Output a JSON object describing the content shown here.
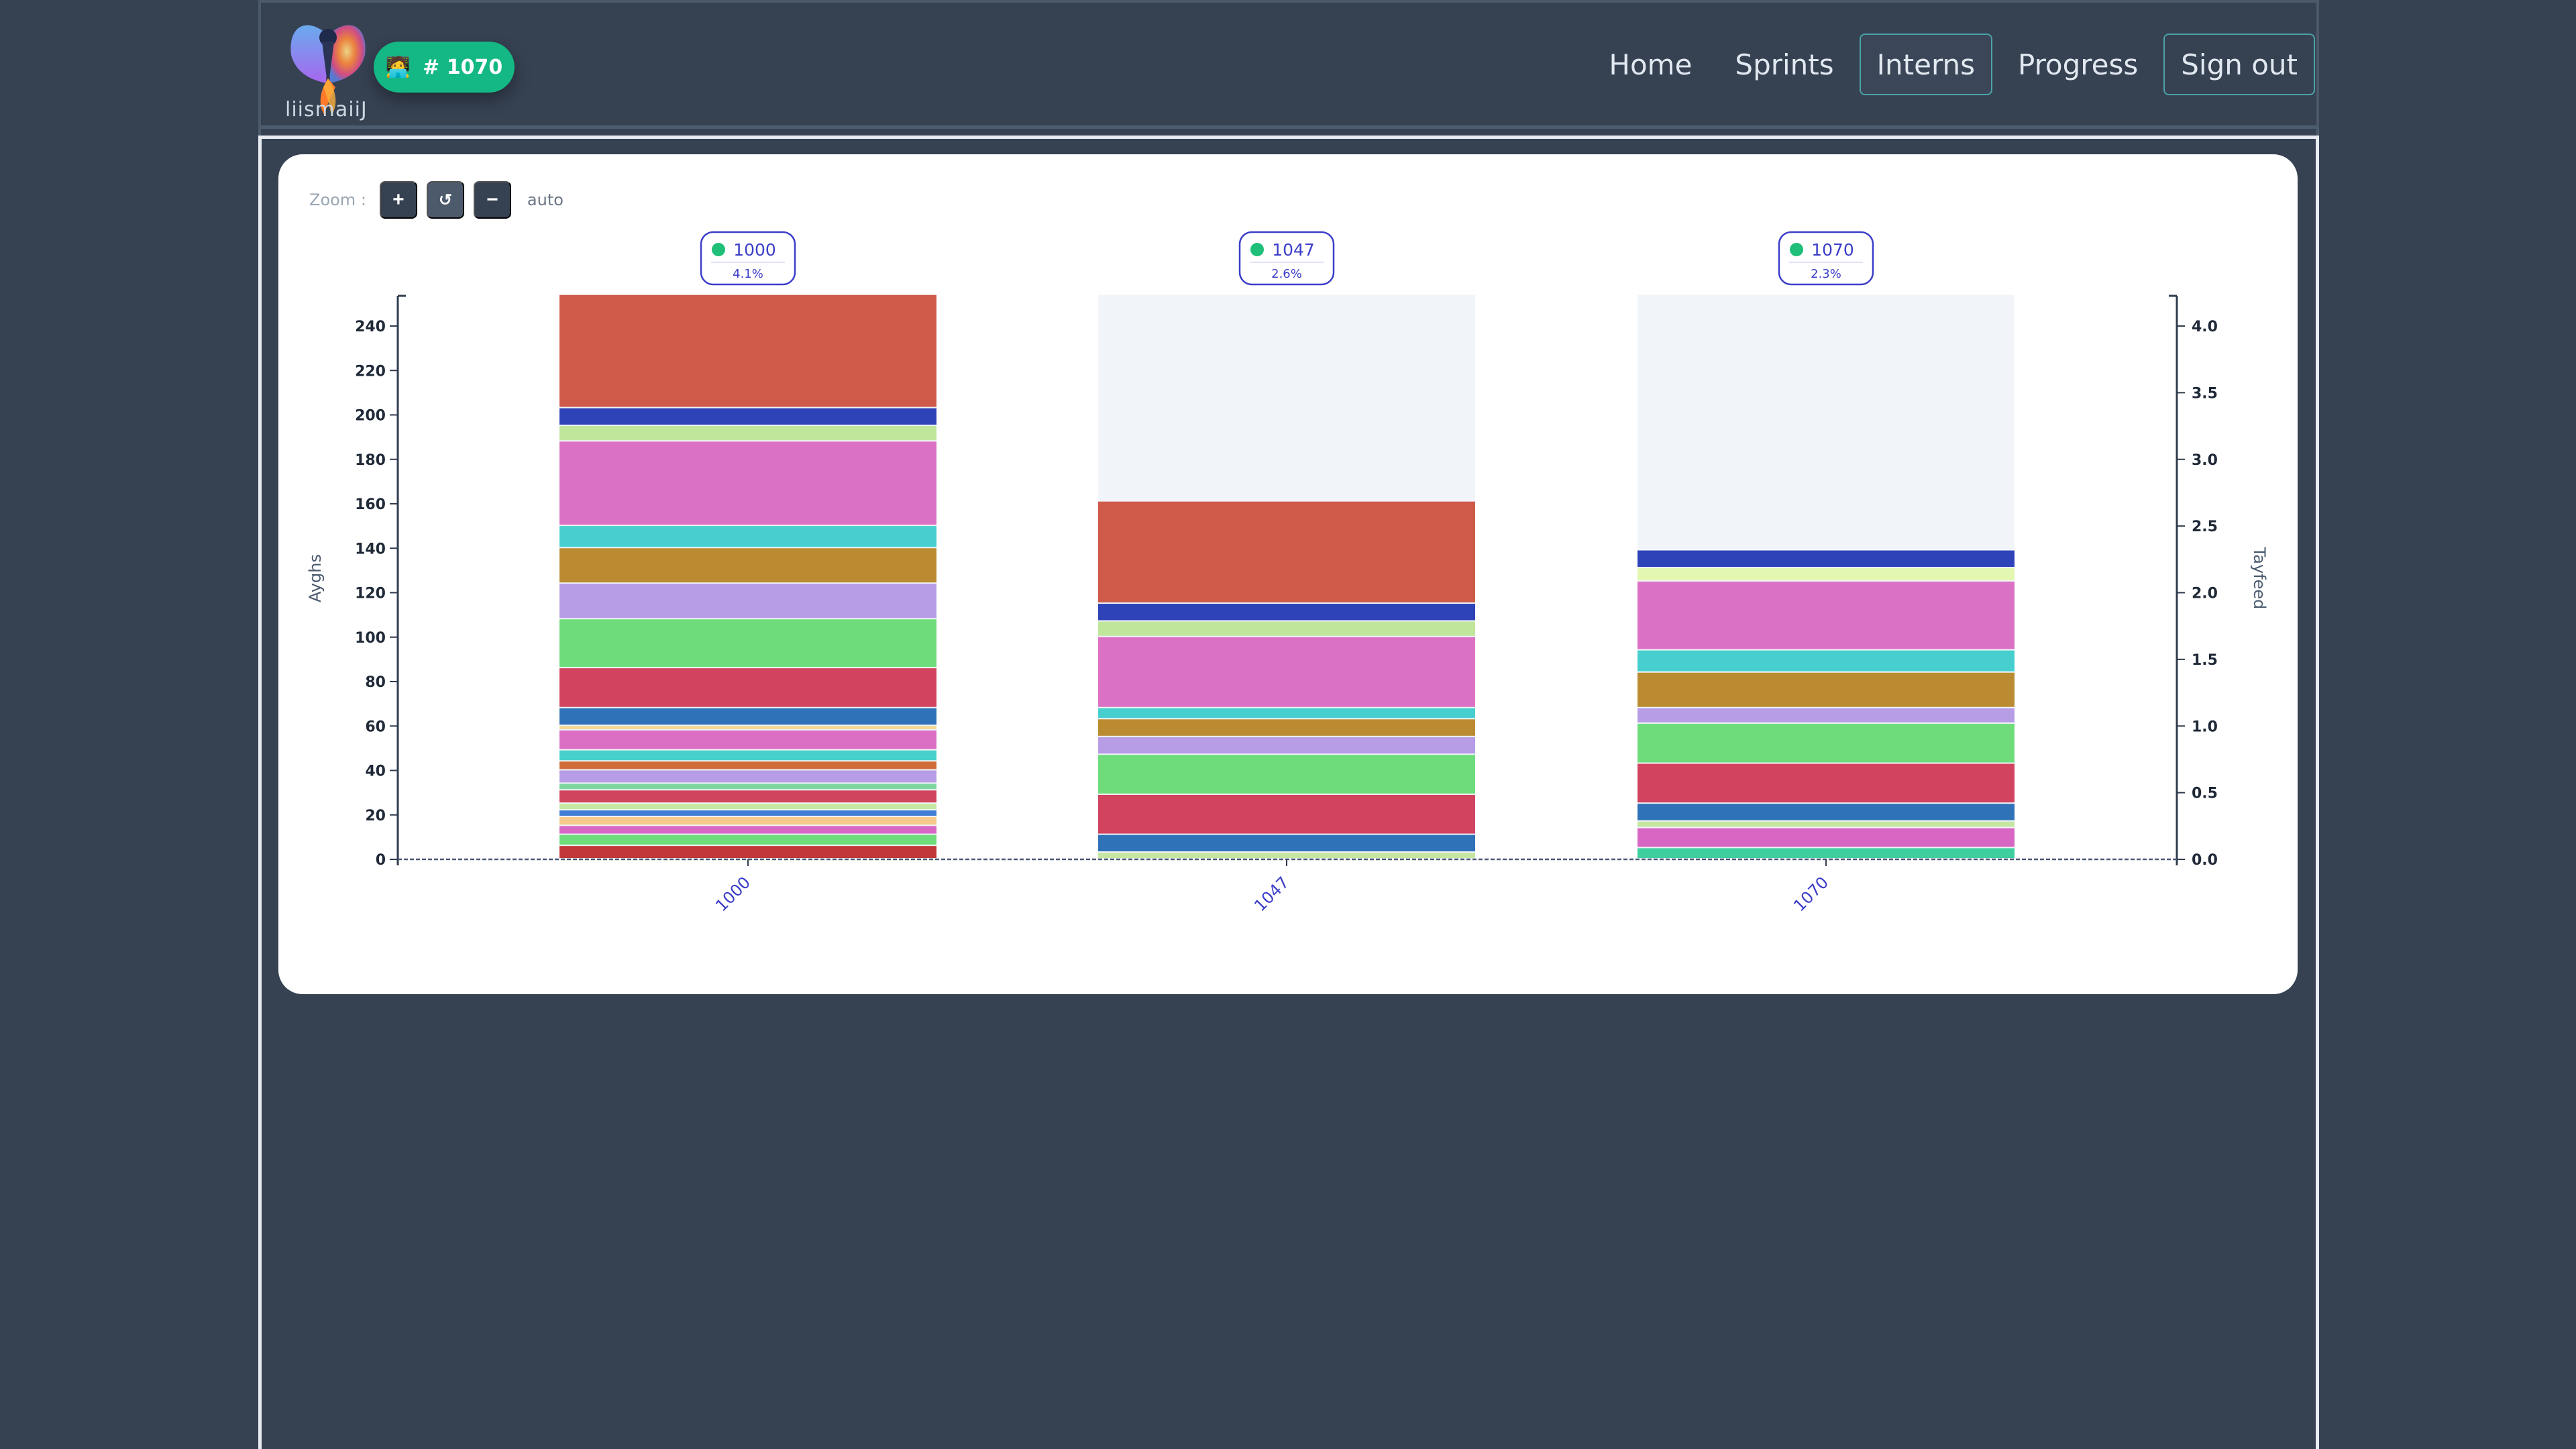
{
  "header": {
    "logo_text": "liismaiiJ",
    "badge_icon": "coder-icon",
    "badge_label": "# 1070",
    "nav": [
      {
        "label": "Home",
        "state": "normal"
      },
      {
        "label": "Sprints",
        "state": "normal"
      },
      {
        "label": "Interns",
        "state": "active"
      },
      {
        "label": "Progress",
        "state": "normal"
      },
      {
        "label": "Sign out",
        "state": "outlined"
      }
    ]
  },
  "zoom": {
    "label": "Zoom :",
    "zoom_in": "+",
    "reset": "↺",
    "zoom_out": "−",
    "mode": "auto"
  },
  "chart_data": {
    "type": "bar",
    "stacked": true,
    "ylabel": "Ayghs",
    "y2label": "Tayfeed",
    "ylim": [
      0,
      255
    ],
    "y2lim": [
      0,
      4.2
    ],
    "yticks": [
      0,
      20,
      40,
      60,
      80,
      100,
      120,
      140,
      160,
      180,
      200,
      220,
      240
    ],
    "y2ticks": [
      "0.0",
      "0.5",
      "1.0",
      "1.5",
      "2.0",
      "2.5",
      "3.0",
      "3.5",
      "4.0"
    ],
    "categories": [
      "1000",
      "1047",
      "1070"
    ],
    "max_value": 254,
    "background_color": "#f1f5f9",
    "grid": false,
    "tags": [
      {
        "label": "1000",
        "percent": "4.1%",
        "dot_color": "#1fbf7a"
      },
      {
        "label": "1047",
        "percent": "2.6%",
        "dot_color": "#1fbf7a"
      },
      {
        "label": "1070",
        "percent": "2.3%",
        "dot_color": "#1fbf7a"
      }
    ],
    "stacks": [
      [
        {
          "value": 6,
          "color": "#c23838"
        },
        {
          "value": 5,
          "color": "#6edc7a"
        },
        {
          "value": 4,
          "color": "#d867c4"
        },
        {
          "value": 4,
          "color": "#f4c98b"
        },
        {
          "value": 3,
          "color": "#3f7dd4"
        },
        {
          "value": 3,
          "color": "#c6e7a2"
        },
        {
          "value": 6,
          "color": "#d0455d"
        },
        {
          "value": 3,
          "color": "#7ed7a0"
        },
        {
          "value": 6,
          "color": "#b79ce6"
        },
        {
          "value": 4,
          "color": "#cf6d3a"
        },
        {
          "value": 5,
          "color": "#48d1cc"
        },
        {
          "value": 9,
          "color": "#db6fc4"
        },
        {
          "value": 2,
          "color": "#f2d98e"
        },
        {
          "value": 8,
          "color": "#2f72b8"
        },
        {
          "value": 18,
          "color": "#d1435f"
        },
        {
          "value": 22,
          "color": "#6edc7a"
        },
        {
          "value": 16,
          "color": "#b79ce6"
        },
        {
          "value": 16,
          "color": "#ba8b30"
        },
        {
          "value": 10,
          "color": "#47cfd0"
        },
        {
          "value": 38,
          "color": "#db71c4"
        },
        {
          "value": 7,
          "color": "#bfe69b"
        },
        {
          "value": 8,
          "color": "#2e43b8"
        },
        {
          "value": 51,
          "color": "#d05a4a"
        }
      ],
      [
        {
          "value": 3,
          "color": "#c6e7a2"
        },
        {
          "value": 8,
          "color": "#2f72b8"
        },
        {
          "value": 18,
          "color": "#d1435f"
        },
        {
          "value": 18,
          "color": "#6edc7a"
        },
        {
          "value": 8,
          "color": "#b79ce6"
        },
        {
          "value": 8,
          "color": "#ba8b30"
        },
        {
          "value": 5,
          "color": "#47cfd0"
        },
        {
          "value": 32,
          "color": "#db71c4"
        },
        {
          "value": 7,
          "color": "#bfe69b"
        },
        {
          "value": 8,
          "color": "#2e43b8"
        },
        {
          "value": 46,
          "color": "#d05a4a"
        }
      ],
      [
        {
          "value": 5,
          "color": "#3fcf9f"
        },
        {
          "value": 9,
          "color": "#d867c4"
        },
        {
          "value": 3,
          "color": "#c6e7a2"
        },
        {
          "value": 8,
          "color": "#2f72b8"
        },
        {
          "value": 18,
          "color": "#d1435f"
        },
        {
          "value": 18,
          "color": "#6edc7a"
        },
        {
          "value": 7,
          "color": "#b79ce6"
        },
        {
          "value": 16,
          "color": "#ba8b30"
        },
        {
          "value": 10,
          "color": "#47cfd0"
        },
        {
          "value": 31,
          "color": "#db71c4"
        },
        {
          "value": 6,
          "color": "#e4f7b0"
        },
        {
          "value": 8,
          "color": "#2e43b8"
        }
      ]
    ]
  }
}
